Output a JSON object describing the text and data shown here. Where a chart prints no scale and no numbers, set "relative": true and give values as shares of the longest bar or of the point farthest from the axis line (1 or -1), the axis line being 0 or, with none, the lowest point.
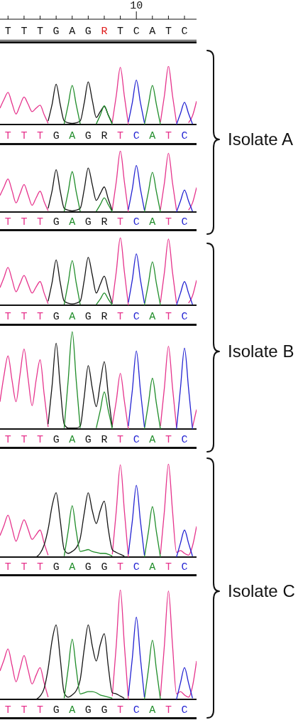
{
  "chart_data": [
    {
      "type": "other",
      "categories": [
        "T",
        "T",
        "T",
        "G",
        "A",
        "G",
        "R",
        "T",
        "C",
        "A",
        "T",
        "C"
      ],
      "annotations": [
        {
          "text": "10",
          "x": "C"
        }
      ]
    },
    {
      "type": "line",
      "relative": true,
      "annotations": [
        "Isolate A"
      ],
      "categories": [
        null,
        null,
        "T",
        null,
        null,
        null,
        "T",
        null,
        null,
        null,
        "T",
        null,
        null,
        null,
        "G",
        null,
        null,
        null,
        "A",
        null,
        null,
        null,
        "G",
        null,
        null,
        null,
        "R",
        null,
        null,
        null,
        "T",
        null,
        null,
        null,
        "C",
        null,
        null,
        null,
        "A",
        null,
        null,
        null,
        "T",
        null,
        null,
        null,
        "C",
        null,
        null,
        null
      ],
      "series": [
        {
          "color": "#e6338c",
          "values": [
            0.28,
            0.43,
            0.55,
            0.36,
            0.18,
            0.33,
            0.47,
            0.35,
            0.22,
            0.28,
            0.33,
            0.17,
            0.02,
            null,
            null,
            null,
            null,
            null,
            null,
            null,
            null,
            null,
            null,
            null,
            null,
            null,
            null,
            null,
            0.04,
            0.5,
            0.98,
            0.49,
            0,
            null,
            null,
            null,
            null,
            null,
            null,
            null,
            0.04,
            0.5,
            1,
            0.5,
            0.03,
            null,
            null,
            0.03,
            0.15,
            0.4
          ]
        },
        {
          "color": "#141414",
          "values": [
            null,
            null,
            null,
            null,
            null,
            null,
            null,
            null,
            null,
            null,
            null,
            null,
            0.06,
            0.35,
            0.69,
            0.35,
            0.06,
            0.03,
            0.02,
            0.03,
            0.06,
            0.37,
            0.73,
            0.42,
            0.12,
            0.22,
            0.31,
            0.16,
            0.02,
            null,
            null,
            null,
            null,
            null,
            null,
            null,
            null,
            null,
            null,
            null,
            null,
            null,
            null,
            null,
            null,
            null,
            null,
            null,
            null,
            null
          ]
        },
        {
          "color": "#1e8c28",
          "values": [
            null,
            null,
            null,
            null,
            null,
            null,
            null,
            null,
            null,
            null,
            null,
            null,
            null,
            null,
            null,
            null,
            0.01,
            0.34,
            0.67,
            0.34,
            0.01,
            null,
            null,
            null,
            0.01,
            0.16,
            0.32,
            0.16,
            0,
            null,
            null,
            null,
            null,
            null,
            null,
            null,
            0,
            0.34,
            0.67,
            0.34,
            0,
            null,
            null,
            null,
            null,
            null,
            null,
            null,
            null,
            null
          ]
        },
        {
          "color": "#2222d2",
          "values": [
            null,
            null,
            null,
            null,
            null,
            null,
            null,
            null,
            null,
            null,
            null,
            null,
            null,
            null,
            null,
            null,
            null,
            null,
            null,
            null,
            null,
            null,
            null,
            null,
            null,
            null,
            null,
            null,
            null,
            null,
            null,
            null,
            0.04,
            0.38,
            0.76,
            0.38,
            0.03,
            null,
            null,
            null,
            null,
            null,
            null,
            null,
            0,
            0.19,
            0.38,
            0.19,
            0.01,
            null
          ]
        }
      ]
    },
    {
      "type": "line",
      "relative": true,
      "categories": [
        null,
        null,
        "T",
        null,
        null,
        null,
        "T",
        null,
        null,
        null,
        "T",
        null,
        null,
        null,
        "G",
        null,
        null,
        null,
        "A",
        null,
        null,
        null,
        "G",
        null,
        null,
        null,
        "R",
        null,
        null,
        null,
        "T",
        null,
        null,
        null,
        "C",
        null,
        null,
        null,
        "A",
        null,
        null,
        null,
        "T",
        null,
        null,
        null,
        "C",
        null,
        null,
        null
      ],
      "series": [
        {
          "color": "#e6338c",
          "values": [
            0.27,
            0.41,
            0.54,
            0.35,
            0.15,
            0.3,
            0.45,
            0.28,
            0.11,
            0.23,
            0.34,
            0.17,
            0.02,
            null,
            null,
            null,
            null,
            null,
            null,
            null,
            null,
            null,
            null,
            null,
            null,
            null,
            null,
            null,
            0.04,
            0.5,
            1,
            0.5,
            0,
            null,
            null,
            null,
            null,
            null,
            null,
            null,
            0.04,
            0.48,
            0.96,
            0.48,
            0.03,
            null,
            null,
            0.03,
            0.15,
            0.4
          ]
        },
        {
          "color": "#141414",
          "values": [
            null,
            null,
            null,
            null,
            null,
            null,
            null,
            null,
            null,
            null,
            null,
            null,
            0.06,
            0.35,
            0.69,
            0.35,
            0.06,
            0.03,
            0.02,
            0.03,
            0.06,
            0.37,
            0.72,
            0.45,
            0.19,
            0.3,
            0.41,
            0.21,
            0.02,
            null,
            null,
            null,
            null,
            null,
            null,
            null,
            null,
            null,
            null,
            null,
            null,
            null,
            null,
            null,
            null,
            null,
            null,
            null,
            null,
            null
          ]
        },
        {
          "color": "#1e8c28",
          "values": [
            null,
            null,
            null,
            null,
            null,
            null,
            null,
            null,
            null,
            null,
            null,
            null,
            null,
            null,
            null,
            null,
            0.01,
            0.33,
            0.66,
            0.33,
            0.01,
            null,
            null,
            null,
            0.01,
            0.12,
            0.23,
            0.12,
            0,
            null,
            null,
            null,
            null,
            null,
            null,
            null,
            0,
            0.33,
            0.65,
            0.33,
            0,
            null,
            null,
            null,
            null,
            null,
            null,
            null,
            null,
            null
          ]
        },
        {
          "color": "#2222d2",
          "values": [
            null,
            null,
            null,
            null,
            null,
            null,
            null,
            null,
            null,
            null,
            null,
            null,
            null,
            null,
            null,
            null,
            null,
            null,
            null,
            null,
            null,
            null,
            null,
            null,
            null,
            null,
            null,
            null,
            null,
            null,
            null,
            null,
            0.04,
            0.38,
            0.76,
            0.38,
            0.03,
            null,
            null,
            null,
            null,
            null,
            null,
            null,
            0,
            0.18,
            0.36,
            0.18,
            0.01,
            null
          ]
        }
      ]
    },
    {
      "type": "line",
      "relative": true,
      "annotations": [
        "Isolate B"
      ],
      "categories": [
        null,
        null,
        "T",
        null,
        null,
        null,
        "T",
        null,
        null,
        null,
        "T",
        null,
        null,
        null,
        "G",
        null,
        null,
        null,
        "A",
        null,
        null,
        null,
        "G",
        null,
        null,
        null,
        "R",
        null,
        null,
        null,
        "T",
        null,
        null,
        null,
        "C",
        null,
        null,
        null,
        "A",
        null,
        null,
        null,
        "T",
        null,
        null,
        null,
        "C",
        null,
        null,
        null
      ],
      "series": [
        {
          "color": "#e6338c",
          "values": [
            0.26,
            0.41,
            0.56,
            0.38,
            0.2,
            0.32,
            0.44,
            0.31,
            0.18,
            0.27,
            0.35,
            0.18,
            0.02,
            null,
            null,
            null,
            null,
            null,
            null,
            null,
            null,
            null,
            null,
            null,
            null,
            null,
            null,
            null,
            0.04,
            0.5,
            1,
            0.5,
            0,
            null,
            null,
            null,
            null,
            null,
            null,
            null,
            0.04,
            0.49,
            0.98,
            0.49,
            0.03,
            null,
            null,
            0.03,
            0.14,
            0.37
          ]
        },
        {
          "color": "#141414",
          "values": [
            null,
            null,
            null,
            null,
            null,
            null,
            null,
            null,
            null,
            null,
            null,
            null,
            0.06,
            0.34,
            0.67,
            0.34,
            0.06,
            0.03,
            0.02,
            0.03,
            0.06,
            0.37,
            0.71,
            0.45,
            0.18,
            0.31,
            0.43,
            0.22,
            0.02,
            null,
            null,
            null,
            null,
            null,
            null,
            null,
            null,
            null,
            null,
            null,
            null,
            null,
            null,
            null,
            null,
            null,
            null,
            null,
            null,
            null
          ]
        },
        {
          "color": "#1e8c28",
          "values": [
            null,
            null,
            null,
            null,
            null,
            null,
            null,
            null,
            null,
            null,
            null,
            null,
            null,
            null,
            null,
            null,
            0.01,
            0.33,
            0.66,
            0.33,
            0.01,
            null,
            null,
            null,
            0.01,
            0.09,
            0.18,
            0.09,
            0,
            null,
            null,
            null,
            null,
            null,
            null,
            null,
            0,
            0.32,
            0.64,
            0.32,
            0,
            null,
            null,
            null,
            null,
            null,
            null,
            null,
            null,
            null
          ]
        },
        {
          "color": "#2222d2",
          "values": [
            null,
            null,
            null,
            null,
            null,
            null,
            null,
            null,
            null,
            null,
            null,
            null,
            null,
            null,
            null,
            null,
            null,
            null,
            null,
            null,
            null,
            null,
            null,
            null,
            null,
            null,
            null,
            null,
            null,
            null,
            null,
            null,
            0.04,
            0.38,
            0.76,
            0.38,
            0.03,
            null,
            null,
            null,
            null,
            null,
            null,
            null,
            0,
            0.18,
            0.35,
            0.18,
            0.01,
            null
          ]
        }
      ]
    },
    {
      "type": "line",
      "relative": true,
      "categories": [
        null,
        null,
        "T",
        null,
        null,
        null,
        "T",
        null,
        null,
        null,
        "T",
        null,
        null,
        null,
        "G",
        null,
        null,
        null,
        "A",
        null,
        null,
        null,
        "G",
        null,
        null,
        null,
        "R",
        null,
        null,
        null,
        "T",
        null,
        null,
        null,
        "C",
        null,
        null,
        null,
        "A",
        null,
        null,
        null,
        "T",
        null,
        null,
        null,
        "C",
        null,
        null,
        null
      ],
      "series": [
        {
          "color": "#e6338c",
          "values": [
            0.28,
            0.55,
            0.75,
            0.5,
            0.28,
            0.56,
            0.82,
            0.52,
            0.24,
            0.5,
            0.71,
            0.36,
            0.02,
            null,
            null,
            null,
            null,
            null,
            null,
            null,
            null,
            null,
            null,
            null,
            null,
            null,
            null,
            null,
            0.04,
            0.29,
            0.57,
            0.29,
            0,
            null,
            null,
            null,
            null,
            null,
            null,
            null,
            0.03,
            0.43,
            0.85,
            0.43,
            0.02,
            null,
            null,
            null,
            0.02,
            0.2
          ]
        },
        {
          "color": "#141414",
          "values": [
            null,
            null,
            null,
            null,
            null,
            null,
            null,
            null,
            null,
            null,
            null,
            null,
            0.05,
            0.45,
            0.88,
            0.44,
            0.05,
            0.01,
            0.01,
            0.01,
            0.03,
            0.33,
            0.65,
            0.42,
            0.23,
            0.47,
            0.69,
            0.35,
            0.02,
            null,
            null,
            null,
            null,
            null,
            null,
            null,
            null,
            null,
            null,
            null,
            null,
            null,
            null,
            null,
            null,
            null,
            null,
            null,
            null,
            null
          ]
        },
        {
          "color": "#1e8c28",
          "values": [
            null,
            null,
            null,
            null,
            null,
            null,
            null,
            null,
            null,
            null,
            null,
            null,
            null,
            null,
            null,
            null,
            0.01,
            0.5,
            1,
            0.5,
            0.01,
            null,
            null,
            null,
            0.01,
            0.19,
            0.38,
            0.19,
            0,
            null,
            null,
            null,
            null,
            null,
            null,
            null,
            0,
            0.26,
            0.52,
            0.26,
            0,
            null,
            null,
            null,
            null,
            null,
            null,
            null,
            null,
            null
          ]
        },
        {
          "color": "#2222d2",
          "values": [
            null,
            null,
            null,
            null,
            null,
            null,
            null,
            null,
            null,
            null,
            null,
            null,
            null,
            null,
            null,
            null,
            null,
            null,
            null,
            null,
            null,
            null,
            null,
            null,
            null,
            null,
            null,
            null,
            null,
            null,
            null,
            null,
            0.03,
            0.4,
            0.8,
            0.4,
            0.02,
            null,
            null,
            null,
            null,
            null,
            null,
            null,
            0,
            0.42,
            0.83,
            0.42,
            0,
            null
          ]
        }
      ]
    },
    {
      "type": "line",
      "relative": true,
      "annotations": [
        "Isolate C"
      ],
      "categories": [
        null,
        null,
        "T",
        null,
        null,
        null,
        "T",
        null,
        null,
        null,
        "T",
        null,
        null,
        null,
        "G",
        null,
        null,
        null,
        "A",
        null,
        null,
        null,
        "G",
        null,
        null,
        null,
        "G",
        null,
        null,
        null,
        "T",
        null,
        null,
        null,
        "C",
        null,
        null,
        null,
        "A",
        null,
        null,
        null,
        "T",
        null,
        null,
        null,
        "C",
        null,
        null,
        null
      ],
      "series": [
        {
          "color": "#e6338c",
          "values": [
            0.23,
            0.34,
            0.45,
            0.31,
            0.17,
            0.29,
            0.4,
            0.3,
            0.19,
            0.24,
            0.29,
            0.15,
            0.02,
            null,
            null,
            null,
            null,
            null,
            null,
            null,
            null,
            null,
            null,
            null,
            null,
            null,
            null,
            null,
            0.03,
            0.5,
            0.99,
            0.5,
            0,
            null,
            null,
            null,
            null,
            null,
            null,
            null,
            0.03,
            0.5,
            1,
            0.5,
            0.05,
            0.07,
            0.04,
            0.02,
            0.12,
            0.33
          ]
        },
        {
          "color": "#141414",
          "values": [
            null,
            null,
            null,
            null,
            null,
            null,
            null,
            null,
            null,
            0,
            0.04,
            0.13,
            0.3,
            0.55,
            0.69,
            0.4,
            0.08,
            0.04,
            0.06,
            0.1,
            0.2,
            0.47,
            0.69,
            0.5,
            0.36,
            0.5,
            0.6,
            0.3,
            0.08,
            0.05,
            0.03,
            0.01,
            null,
            null,
            null,
            null,
            null,
            null,
            null,
            null,
            null,
            null,
            null,
            null,
            null,
            null,
            null,
            null,
            null,
            null
          ]
        },
        {
          "color": "#1e8c28",
          "values": [
            null,
            null,
            null,
            null,
            null,
            null,
            null,
            null,
            null,
            null,
            null,
            null,
            null,
            null,
            null,
            null,
            0.01,
            0.28,
            0.55,
            0.28,
            0.06,
            0.07,
            0.08,
            0.06,
            0.05,
            0.04,
            0.04,
            0.03,
            0.01,
            null,
            null,
            null,
            null,
            null,
            null,
            null,
            0,
            0.27,
            0.54,
            0.27,
            0,
            null,
            null,
            null,
            null,
            null,
            null,
            null,
            null,
            null
          ]
        },
        {
          "color": "#2222d2",
          "values": [
            null,
            null,
            null,
            null,
            null,
            null,
            null,
            null,
            null,
            null,
            null,
            null,
            null,
            null,
            null,
            null,
            null,
            null,
            null,
            null,
            null,
            null,
            null,
            null,
            null,
            null,
            null,
            null,
            null,
            null,
            null,
            null,
            0.03,
            0.39,
            0.77,
            0.39,
            0.02,
            null,
            null,
            null,
            null,
            null,
            null,
            null,
            0,
            0.15,
            0.29,
            0.15,
            0.01,
            null
          ]
        }
      ]
    },
    {
      "type": "line",
      "relative": true,
      "categories": [
        null,
        null,
        "T",
        null,
        null,
        null,
        "T",
        null,
        null,
        null,
        "T",
        null,
        null,
        null,
        "G",
        null,
        null,
        null,
        "A",
        null,
        null,
        null,
        "G",
        null,
        null,
        null,
        "G",
        null,
        null,
        null,
        "T",
        null,
        null,
        null,
        "C",
        null,
        null,
        null,
        "A",
        null,
        null,
        null,
        "T",
        null,
        null,
        null,
        "C",
        null,
        null,
        null
      ],
      "series": [
        {
          "color": "#e6338c",
          "values": [
            0.26,
            0.36,
            0.46,
            0.31,
            0.16,
            0.28,
            0.4,
            0.27,
            0.14,
            0.22,
            0.29,
            0.15,
            0.02,
            null,
            null,
            null,
            null,
            null,
            null,
            null,
            null,
            null,
            null,
            null,
            null,
            null,
            null,
            null,
            0.03,
            0.5,
            1,
            0.5,
            0,
            null,
            null,
            null,
            null,
            null,
            null,
            null,
            0.03,
            0.5,
            0.99,
            0.5,
            0.05,
            0.07,
            0.04,
            0.02,
            0.12,
            0.35
          ]
        },
        {
          "color": "#141414",
          "values": [
            null,
            null,
            null,
            null,
            null,
            null,
            null,
            null,
            null,
            0,
            0.03,
            0.1,
            0.28,
            0.54,
            0.68,
            0.38,
            0.06,
            0.02,
            0.04,
            0.08,
            0.18,
            0.46,
            0.68,
            0.49,
            0.35,
            0.5,
            0.6,
            0.3,
            0.06,
            0.05,
            0.03,
            0.01,
            null,
            null,
            null,
            null,
            null,
            null,
            null,
            null,
            null,
            null,
            null,
            null,
            null,
            null,
            null,
            null,
            null,
            null
          ]
        },
        {
          "color": "#1e8c28",
          "values": [
            null,
            null,
            null,
            null,
            null,
            null,
            null,
            null,
            null,
            null,
            null,
            null,
            null,
            null,
            null,
            null,
            0.01,
            0.28,
            0.55,
            0.28,
            0.05,
            0.06,
            0.07,
            0.07,
            0.06,
            0.04,
            0.03,
            0.02,
            0.01,
            null,
            null,
            null,
            null,
            null,
            null,
            null,
            0,
            0.27,
            0.54,
            0.27,
            0,
            null,
            null,
            null,
            null,
            null,
            null,
            null,
            null,
            null
          ]
        },
        {
          "color": "#2222d2",
          "values": [
            null,
            null,
            null,
            null,
            null,
            null,
            null,
            null,
            null,
            null,
            null,
            null,
            null,
            null,
            null,
            null,
            null,
            null,
            null,
            null,
            null,
            null,
            null,
            null,
            null,
            null,
            null,
            null,
            null,
            null,
            null,
            null,
            0.03,
            0.38,
            0.75,
            0.38,
            0.02,
            null,
            null,
            null,
            null,
            null,
            null,
            null,
            0,
            0.15,
            0.29,
            0.15,
            0.01,
            null
          ]
        }
      ]
    }
  ]
}
